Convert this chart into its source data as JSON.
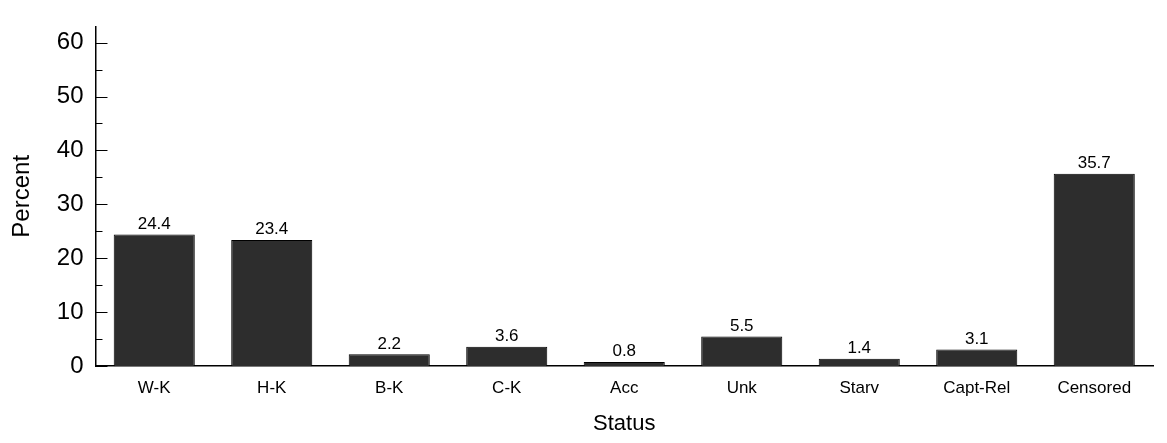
{
  "chart_data": {
    "type": "bar",
    "xlabel": "Status",
    "ylabel": "Percent",
    "categories": [
      "W-K",
      "H-K",
      "B-K",
      "C-K",
      "Acc",
      "Unk",
      "Starv",
      "Capt-Rel",
      "Censored"
    ],
    "values": [
      24.4,
      23.4,
      2.2,
      3.6,
      0.8,
      5.5,
      1.4,
      3.1,
      35.7
    ],
    "color": "#2d2d2d",
    "data_labels": true,
    "grid": false,
    "legend": false,
    "ylim": [
      0,
      63
    ],
    "yticks": [
      0,
      {
        "value": 5,
        "label": null
      },
      10,
      {
        "value": 15,
        "label": null
      },
      20,
      {
        "value": 25,
        "label": null
      },
      30,
      {
        "value": 35,
        "label": null
      },
      40,
      {
        "value": 45,
        "label": null
      },
      50,
      {
        "value": 55,
        "label": null
      },
      60
    ]
  }
}
